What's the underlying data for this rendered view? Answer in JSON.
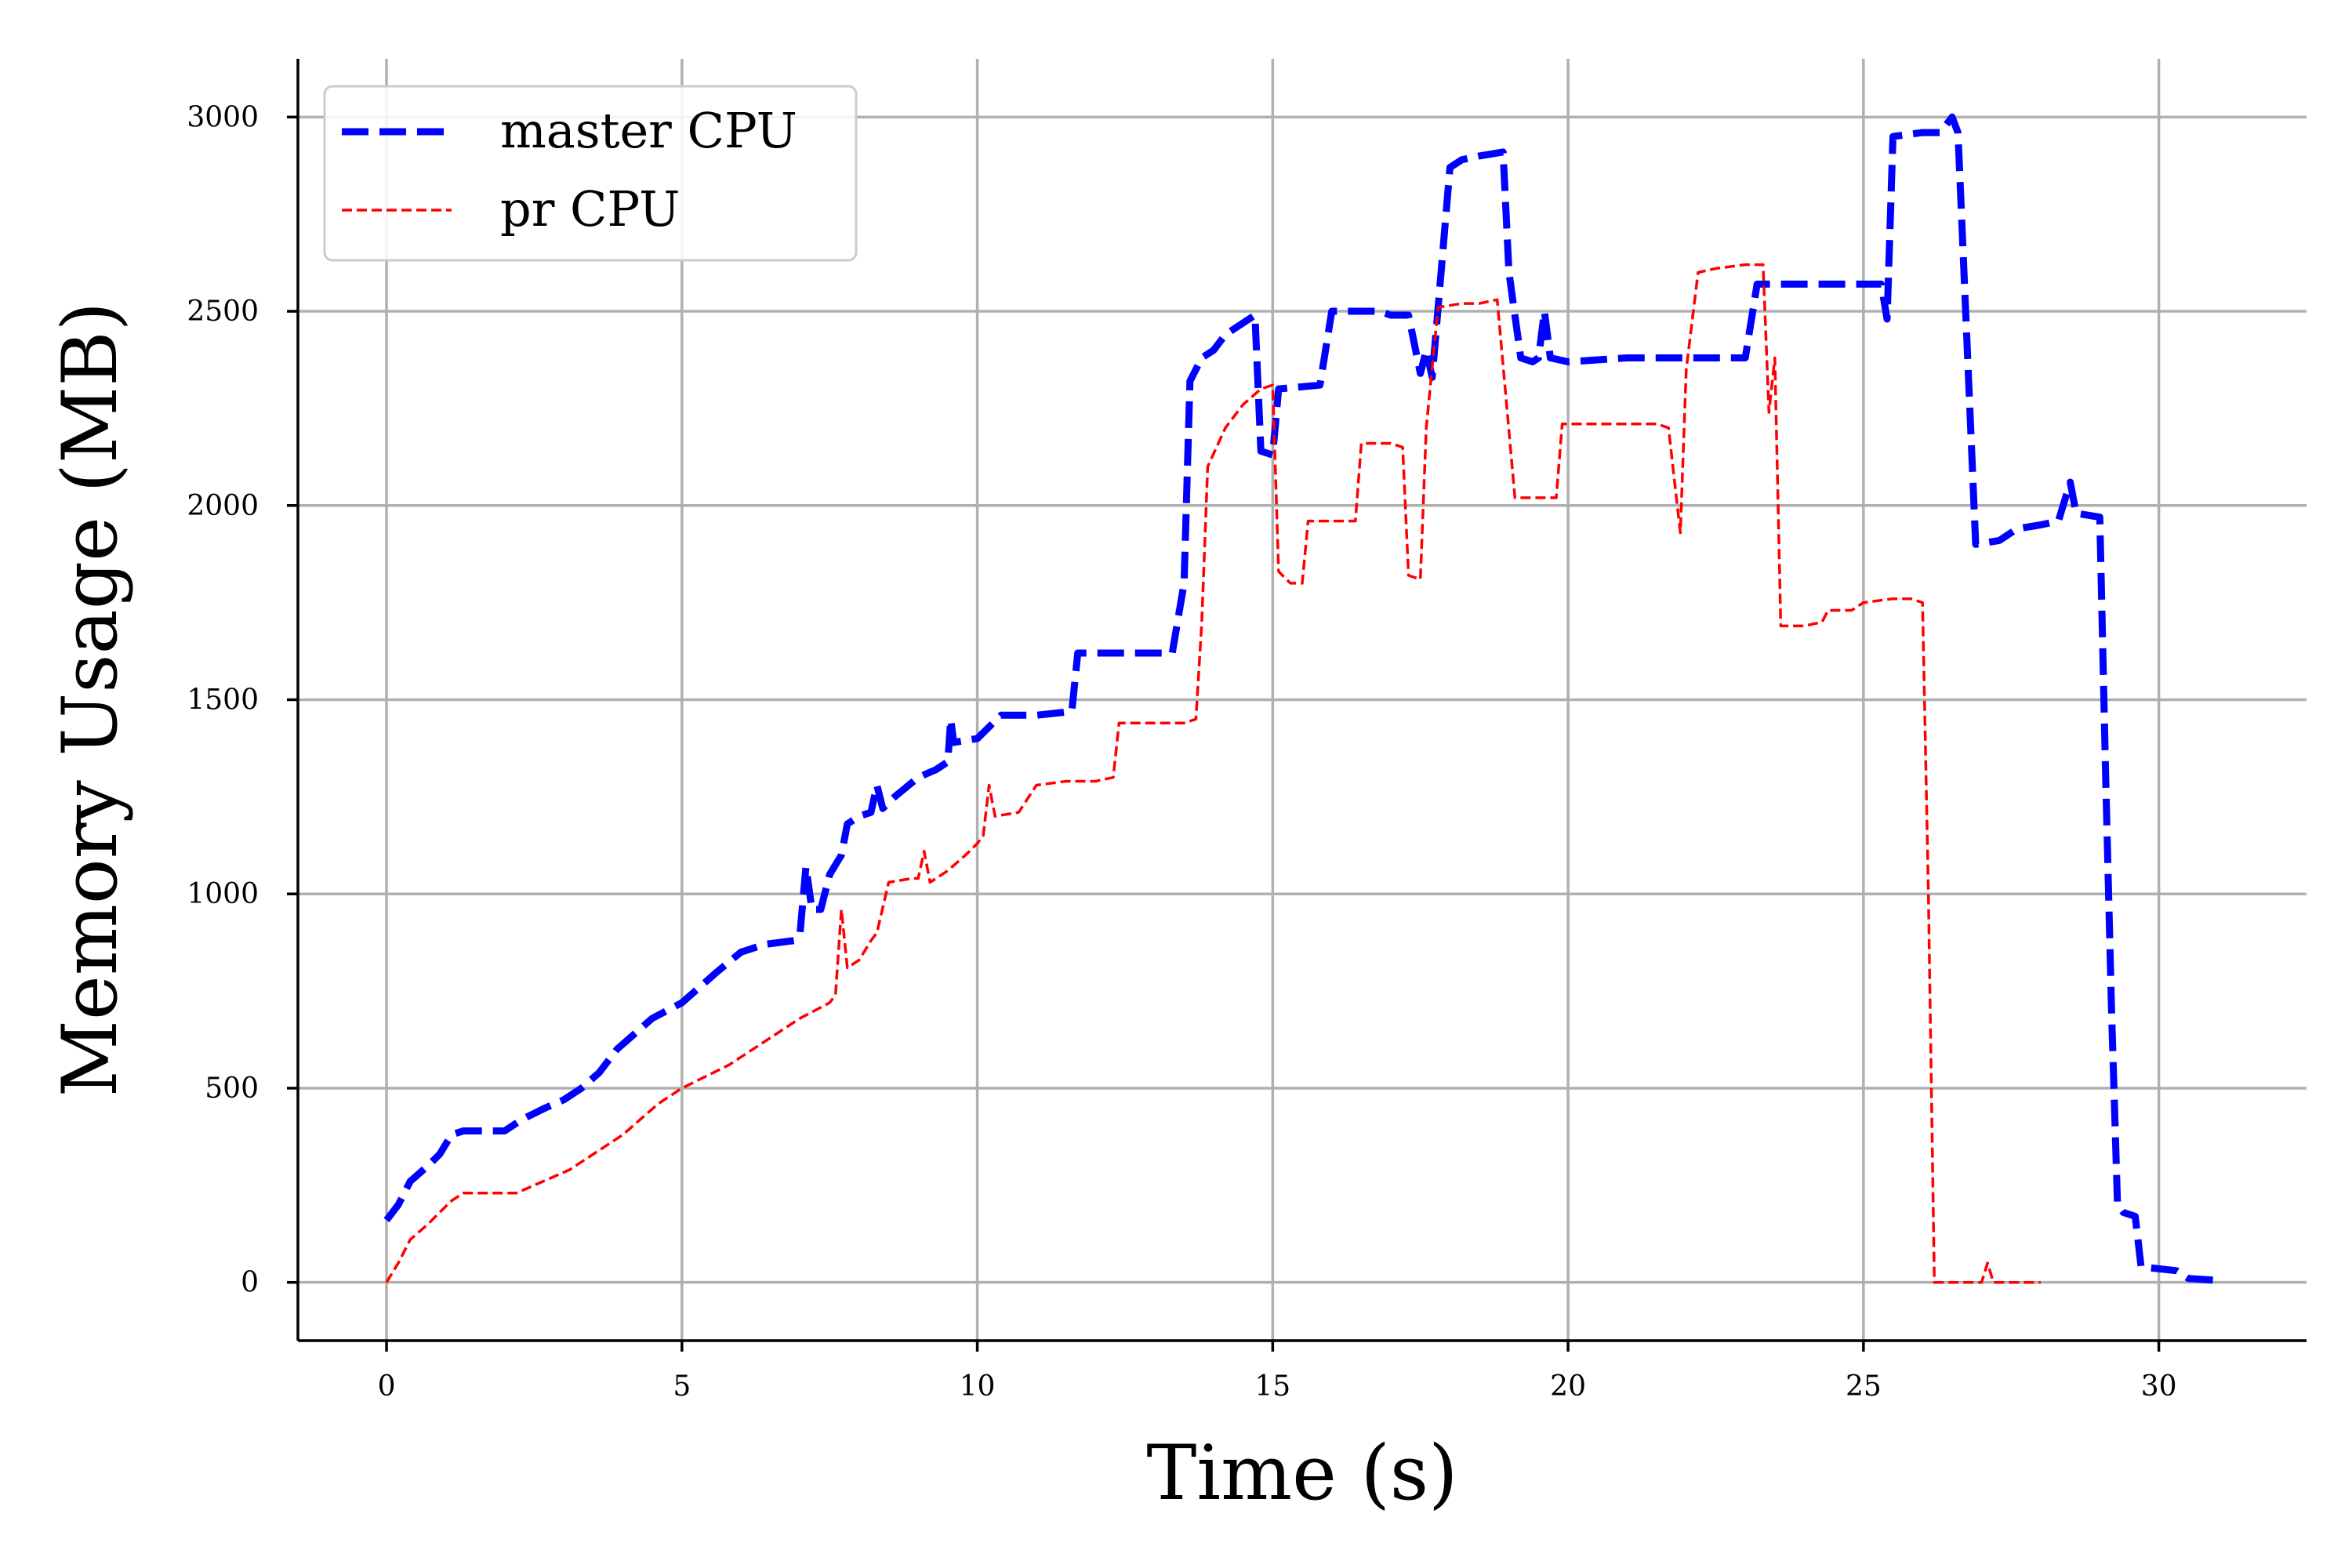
{
  "chart_data": {
    "type": "line",
    "xlabel": "Time (s)",
    "ylabel": "Memory Usage (MB)",
    "xlim": [
      -1.5,
      32.5
    ],
    "ylim": [
      -150,
      3150
    ],
    "xticks": [
      0,
      5,
      10,
      15,
      20,
      25,
      30
    ],
    "yticks": [
      0,
      500,
      1000,
      1500,
      2000,
      2500,
      3000
    ],
    "grid": true,
    "legend_position": "top-left",
    "series": [
      {
        "name": "master CPU",
        "color": "#0000ff",
        "style": "dashed-thick",
        "points": [
          [
            0,
            160
          ],
          [
            0.2,
            200
          ],
          [
            0.4,
            260
          ],
          [
            0.7,
            300
          ],
          [
            0.9,
            330
          ],
          [
            1.1,
            380
          ],
          [
            1.3,
            390
          ],
          [
            2.0,
            390
          ],
          [
            2.3,
            420
          ],
          [
            2.7,
            450
          ],
          [
            3.0,
            470
          ],
          [
            3.3,
            500
          ],
          [
            3.6,
            540
          ],
          [
            3.9,
            600
          ],
          [
            4.2,
            640
          ],
          [
            4.5,
            680
          ],
          [
            5.0,
            720
          ],
          [
            5.3,
            760
          ],
          [
            5.6,
            800
          ],
          [
            6.0,
            850
          ],
          [
            6.4,
            870
          ],
          [
            6.9,
            880
          ],
          [
            7.0,
            900
          ],
          [
            7.1,
            1070
          ],
          [
            7.2,
            960
          ],
          [
            7.35,
            960
          ],
          [
            7.5,
            1050
          ],
          [
            7.7,
            1100
          ],
          [
            7.8,
            1180
          ],
          [
            8.0,
            1200
          ],
          [
            8.2,
            1210
          ],
          [
            8.3,
            1280
          ],
          [
            8.4,
            1220
          ],
          [
            8.6,
            1250
          ],
          [
            9.0,
            1300
          ],
          [
            9.3,
            1320
          ],
          [
            9.5,
            1340
          ],
          [
            9.55,
            1450
          ],
          [
            9.6,
            1390
          ],
          [
            10.0,
            1400
          ],
          [
            10.2,
            1430
          ],
          [
            10.4,
            1460
          ],
          [
            11.0,
            1460
          ],
          [
            11.6,
            1470
          ],
          [
            11.7,
            1620
          ],
          [
            13.0,
            1620
          ],
          [
            13.3,
            1620
          ],
          [
            13.5,
            1800
          ],
          [
            13.6,
            2320
          ],
          [
            13.8,
            2380
          ],
          [
            14.0,
            2400
          ],
          [
            14.2,
            2440
          ],
          [
            14.5,
            2470
          ],
          [
            14.7,
            2490
          ],
          [
            14.8,
            2140
          ],
          [
            15.0,
            2130
          ],
          [
            15.1,
            2300
          ],
          [
            15.8,
            2310
          ],
          [
            16.0,
            2500
          ],
          [
            16.8,
            2500
          ],
          [
            17.0,
            2490
          ],
          [
            17.3,
            2490
          ],
          [
            17.5,
            2340
          ],
          [
            17.6,
            2400
          ],
          [
            17.7,
            2330
          ],
          [
            18.0,
            2870
          ],
          [
            18.2,
            2890
          ],
          [
            18.5,
            2900
          ],
          [
            18.9,
            2910
          ],
          [
            19.0,
            2600
          ],
          [
            19.2,
            2380
          ],
          [
            19.4,
            2370
          ],
          [
            19.5,
            2380
          ],
          [
            19.6,
            2500
          ],
          [
            19.7,
            2380
          ],
          [
            20.0,
            2370
          ],
          [
            21.0,
            2380
          ],
          [
            22.0,
            2380
          ],
          [
            22.5,
            2380
          ],
          [
            23.0,
            2380
          ],
          [
            23.2,
            2570
          ],
          [
            25.3,
            2570
          ],
          [
            25.4,
            2480
          ],
          [
            25.5,
            2950
          ],
          [
            26.0,
            2960
          ],
          [
            26.3,
            2960
          ],
          [
            26.5,
            3000
          ],
          [
            26.6,
            2960
          ],
          [
            26.9,
            1900
          ],
          [
            27.3,
            1910
          ],
          [
            27.6,
            1940
          ],
          [
            28.0,
            1950
          ],
          [
            28.3,
            1960
          ],
          [
            28.5,
            2060
          ],
          [
            28.6,
            1980
          ],
          [
            29.0,
            1970
          ],
          [
            29.1,
            1300
          ],
          [
            29.2,
            700
          ],
          [
            29.3,
            200
          ],
          [
            29.4,
            180
          ],
          [
            29.6,
            170
          ],
          [
            29.7,
            40
          ],
          [
            30.3,
            30
          ],
          [
            30.5,
            10
          ],
          [
            31.0,
            5
          ]
        ]
      },
      {
        "name": "pr CPU",
        "color": "#ff0000",
        "style": "dashed-thin",
        "points": [
          [
            0,
            0
          ],
          [
            0.2,
            50
          ],
          [
            0.4,
            110
          ],
          [
            0.7,
            150
          ],
          [
            0.9,
            180
          ],
          [
            1.1,
            210
          ],
          [
            1.3,
            230
          ],
          [
            2.2,
            230
          ],
          [
            2.5,
            250
          ],
          [
            2.8,
            270
          ],
          [
            3.1,
            290
          ],
          [
            3.4,
            320
          ],
          [
            3.7,
            350
          ],
          [
            4.0,
            380
          ],
          [
            4.3,
            420
          ],
          [
            4.6,
            460
          ],
          [
            5.0,
            500
          ],
          [
            5.4,
            530
          ],
          [
            5.8,
            560
          ],
          [
            6.2,
            600
          ],
          [
            6.6,
            640
          ],
          [
            7.0,
            680
          ],
          [
            7.5,
            720
          ],
          [
            7.6,
            740
          ],
          [
            7.7,
            960
          ],
          [
            7.8,
            810
          ],
          [
            8.0,
            830
          ],
          [
            8.2,
            880
          ],
          [
            8.3,
            900
          ],
          [
            8.5,
            1030
          ],
          [
            8.9,
            1040
          ],
          [
            9.0,
            1040
          ],
          [
            9.1,
            1110
          ],
          [
            9.2,
            1030
          ],
          [
            9.5,
            1060
          ],
          [
            9.8,
            1100
          ],
          [
            10.0,
            1130
          ],
          [
            10.1,
            1150
          ],
          [
            10.2,
            1280
          ],
          [
            10.3,
            1200
          ],
          [
            10.7,
            1210
          ],
          [
            11.0,
            1280
          ],
          [
            11.5,
            1290
          ],
          [
            12.0,
            1290
          ],
          [
            12.3,
            1300
          ],
          [
            12.4,
            1440
          ],
          [
            13.5,
            1440
          ],
          [
            13.7,
            1450
          ],
          [
            13.8,
            1700
          ],
          [
            13.9,
            2100
          ],
          [
            14.2,
            2200
          ],
          [
            14.5,
            2260
          ],
          [
            14.8,
            2300
          ],
          [
            15.0,
            2310
          ],
          [
            15.1,
            1830
          ],
          [
            15.3,
            1800
          ],
          [
            15.5,
            1800
          ],
          [
            15.6,
            1960
          ],
          [
            16.0,
            1960
          ],
          [
            16.2,
            1960
          ],
          [
            16.4,
            1960
          ],
          [
            16.5,
            2160
          ],
          [
            16.8,
            2160
          ],
          [
            17.0,
            2160
          ],
          [
            17.2,
            2150
          ],
          [
            17.3,
            1820
          ],
          [
            17.5,
            1810
          ],
          [
            17.6,
            2200
          ],
          [
            17.8,
            2510
          ],
          [
            18.2,
            2520
          ],
          [
            18.5,
            2520
          ],
          [
            18.8,
            2530
          ],
          [
            19.1,
            2020
          ],
          [
            19.5,
            2020
          ],
          [
            19.8,
            2020
          ],
          [
            19.9,
            2210
          ],
          [
            21.0,
            2210
          ],
          [
            21.5,
            2210
          ],
          [
            21.7,
            2200
          ],
          [
            21.9,
            1930
          ],
          [
            22.0,
            2350
          ],
          [
            22.2,
            2600
          ],
          [
            22.5,
            2610
          ],
          [
            23.0,
            2620
          ],
          [
            23.3,
            2620
          ],
          [
            23.4,
            2240
          ],
          [
            23.5,
            2380
          ],
          [
            23.6,
            1690
          ],
          [
            24.0,
            1690
          ],
          [
            24.3,
            1700
          ],
          [
            24.4,
            1730
          ],
          [
            24.8,
            1730
          ],
          [
            25.0,
            1750
          ],
          [
            25.5,
            1760
          ],
          [
            25.8,
            1760
          ],
          [
            26.0,
            1750
          ],
          [
            26.1,
            1000
          ],
          [
            26.2,
            0
          ],
          [
            27.0,
            0
          ],
          [
            27.1,
            50
          ],
          [
            27.2,
            0
          ],
          [
            28.0,
            0
          ]
        ]
      }
    ]
  }
}
